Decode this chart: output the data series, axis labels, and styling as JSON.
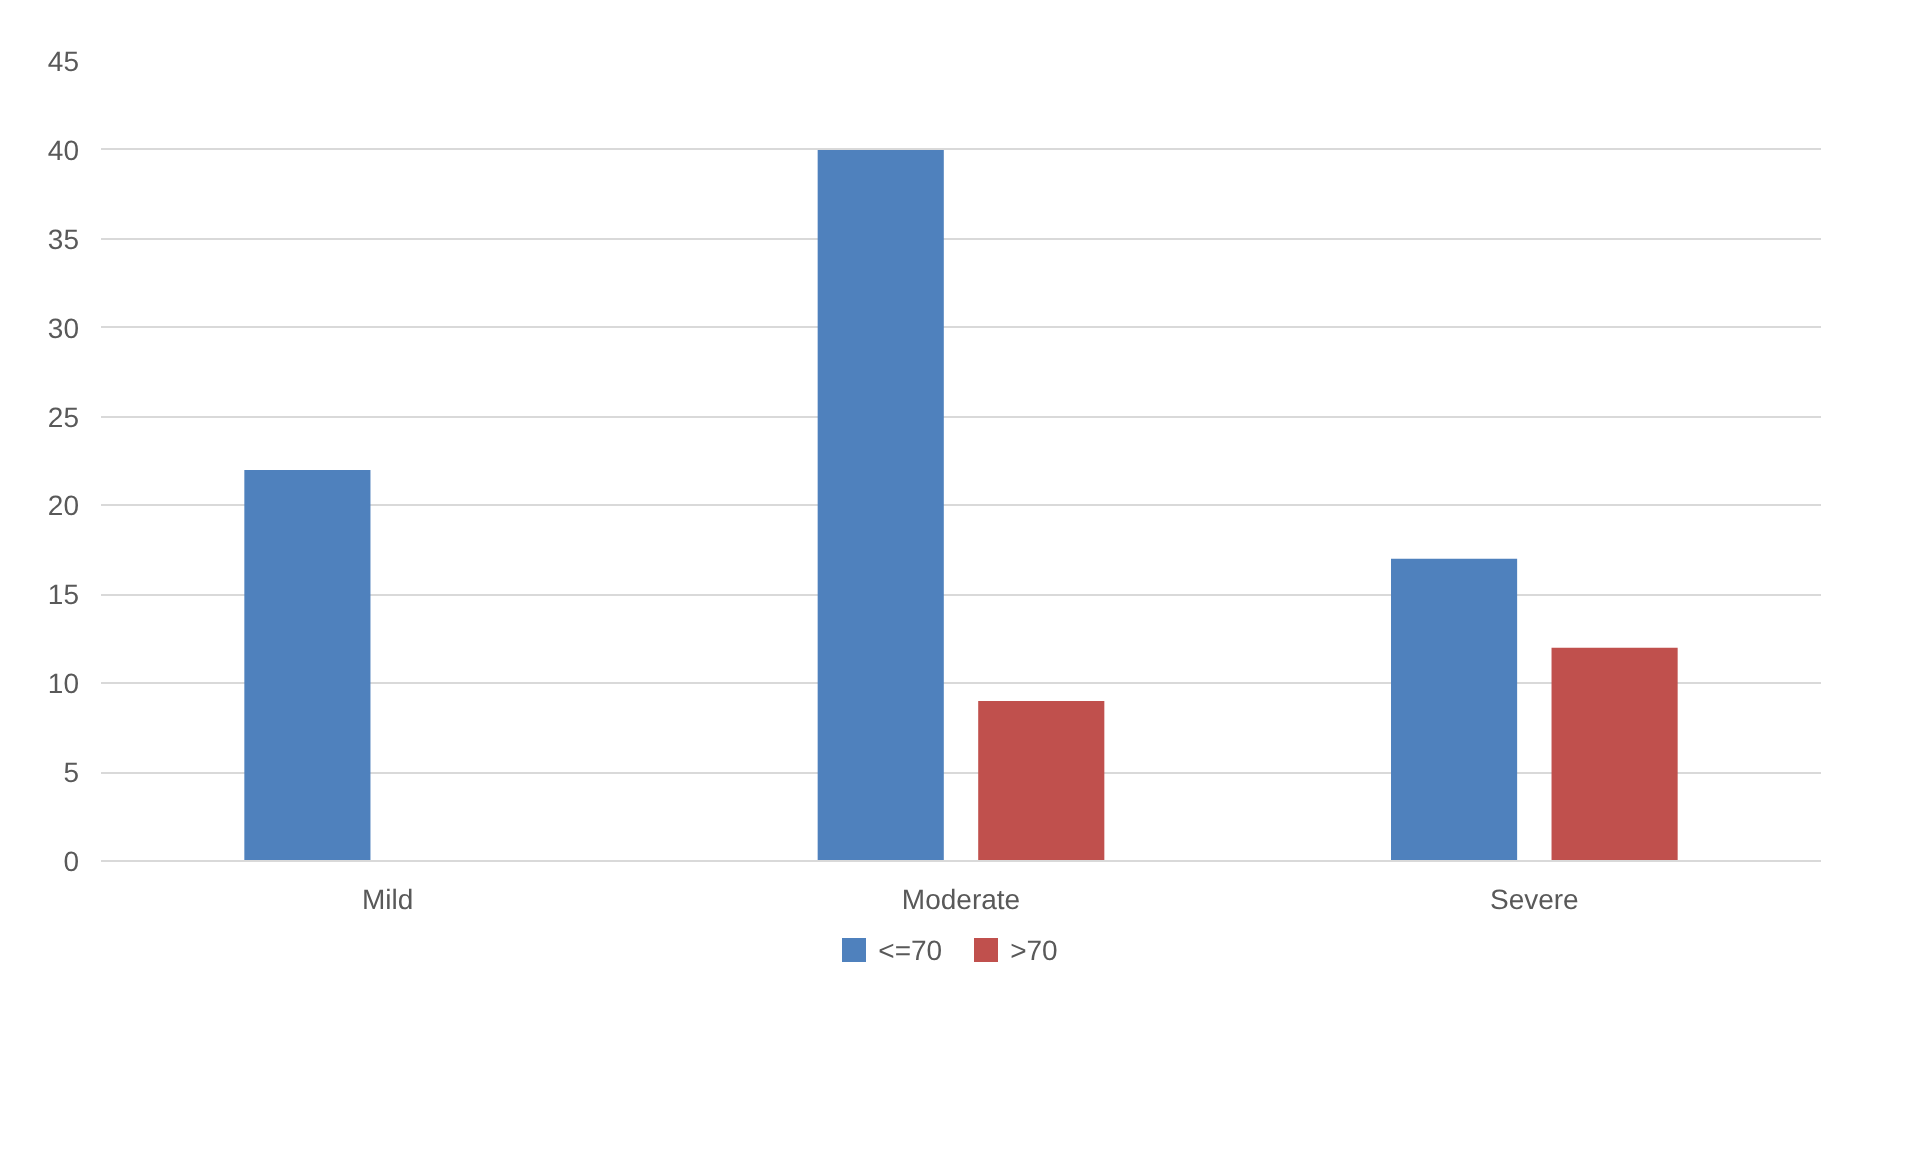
{
  "chart_data": {
    "type": "bar",
    "categories": [
      "Mild",
      "Moderate",
      "Severe"
    ],
    "series": [
      {
        "name": "<=70",
        "color": "#4f81bd",
        "values": [
          22,
          40,
          17
        ]
      },
      {
        "name": ">70",
        "color": "#c0504d",
        "values": [
          0,
          9,
          12
        ]
      }
    ],
    "ylim": [
      0,
      45
    ],
    "yticks": [
      0,
      5,
      10,
      15,
      20,
      25,
      30,
      35,
      40,
      45
    ],
    "grid": "y",
    "legend": "bottom"
  }
}
